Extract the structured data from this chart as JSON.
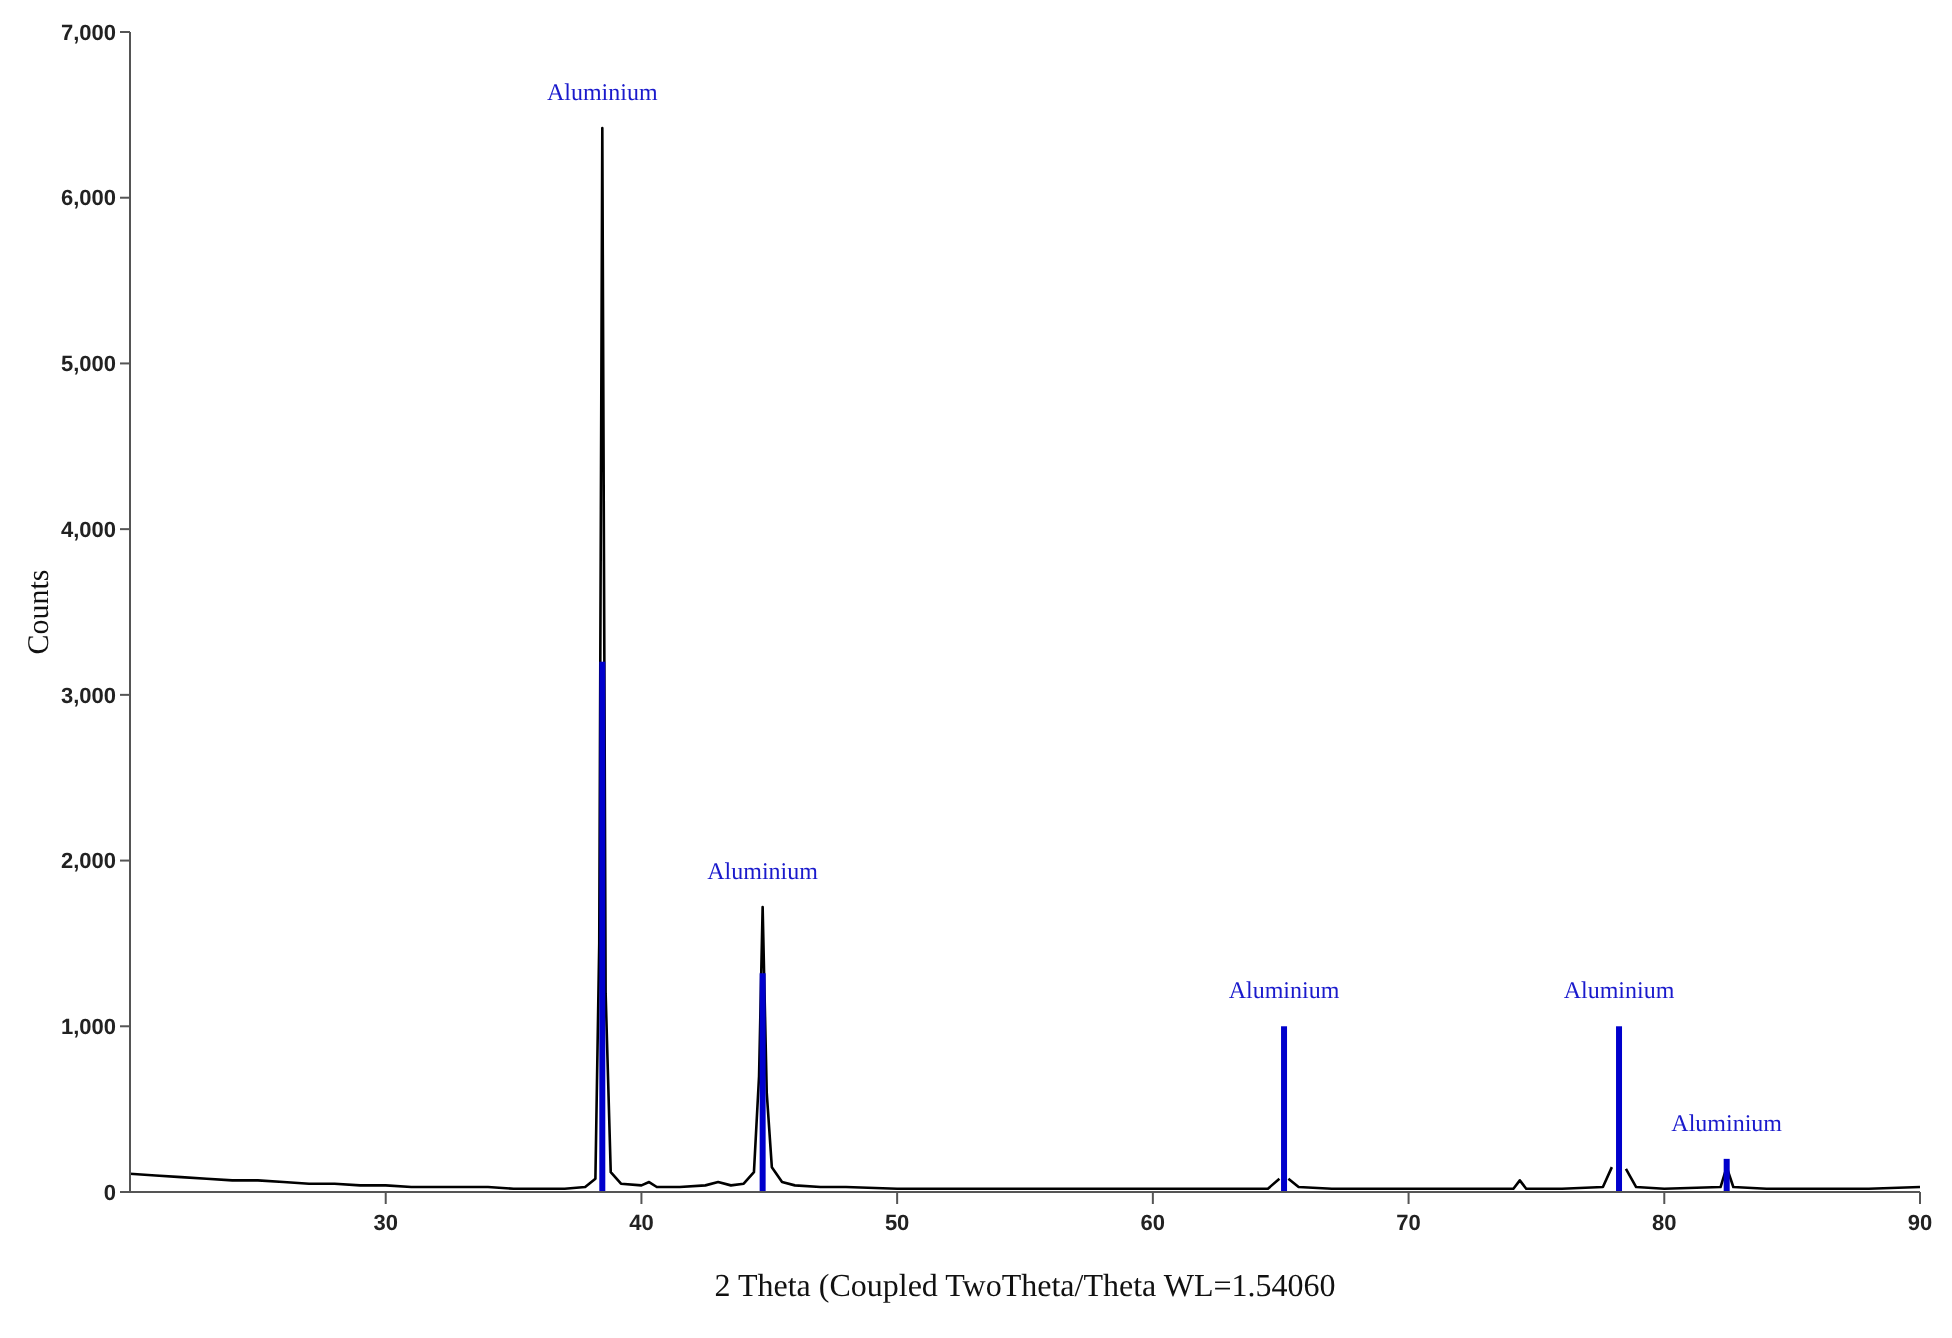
{
  "chart_data": {
    "type": "line",
    "xlabel": "2 Theta (Coupled TwoTheta/Theta WL=1.54060",
    "ylabel": "Counts",
    "xlim": [
      20,
      90
    ],
    "xticks": [
      30,
      40,
      50,
      60,
      70,
      80,
      90
    ],
    "ylim": [
      0,
      7000
    ],
    "yticks": [
      0,
      {
        "value": 1000,
        "label": "1,000"
      },
      {
        "value": 2000,
        "label": "2,000"
      },
      {
        "value": 3000,
        "label": "3,000"
      },
      {
        "value": 4000,
        "label": "4,000"
      },
      {
        "value": 5000,
        "label": "5,000"
      },
      {
        "value": 6000,
        "label": "6,000"
      },
      {
        "value": 7000,
        "label": "7,000"
      }
    ],
    "grid": false,
    "marker": "none",
    "line_style": "solid",
    "series": [
      {
        "color": "#000000",
        "x": [
          20,
          21,
          22,
          23,
          24,
          25,
          26,
          27,
          28,
          29,
          30,
          31,
          32,
          33,
          34,
          35,
          36,
          37,
          37.8,
          38.2,
          38.35,
          38.47,
          38.6,
          38.8,
          39.2,
          40,
          40.3,
          40.6,
          41.5,
          42.5,
          43,
          43.5,
          44,
          44.4,
          44.6,
          44.74,
          44.9,
          45.1,
          45.5,
          46,
          47,
          48,
          50,
          52,
          55,
          58,
          60,
          62,
          64.5,
          64.95,
          65.13,
          65.3,
          65.7,
          67,
          70,
          72,
          74.1,
          74.35,
          74.6,
          76,
          77.6,
          77.95,
          78.23,
          78.5,
          78.9,
          80,
          82.2,
          82.44,
          82.7,
          84,
          86,
          88,
          90
        ],
        "values": [
          110,
          100,
          90,
          80,
          70,
          70,
          60,
          50,
          50,
          40,
          40,
          30,
          30,
          30,
          30,
          20,
          20,
          20,
          30,
          80,
          1500,
          6420,
          1200,
          120,
          50,
          40,
          60,
          30,
          30,
          40,
          60,
          40,
          50,
          120,
          700,
          1720,
          600,
          150,
          60,
          40,
          30,
          30,
          20,
          20,
          20,
          20,
          20,
          20,
          20,
          80,
          null,
          80,
          30,
          20,
          20,
          20,
          20,
          70,
          20,
          20,
          30,
          150,
          null,
          140,
          30,
          20,
          30,
          150,
          30,
          20,
          20,
          20,
          30
        ]
      },
      {
        "type": "bar",
        "color": "#0000cc",
        "x": [
          38.47,
          44.74,
          65.13,
          78.23,
          82.44
        ],
        "values": [
          3200,
          1320,
          1000,
          1000,
          200
        ]
      }
    ],
    "annotations": [
      {
        "text": "Aluminium",
        "x": 38.47,
        "y": 6420
      },
      {
        "text": "Aluminium",
        "x": 44.74,
        "y": 1720
      },
      {
        "text": "Aluminium",
        "x": 65.13,
        "y": 1000
      },
      {
        "text": "Aluminium",
        "x": 78.23,
        "y": 1000
      },
      {
        "text": "Aluminium",
        "x": 82.44,
        "y": 200
      }
    ]
  }
}
